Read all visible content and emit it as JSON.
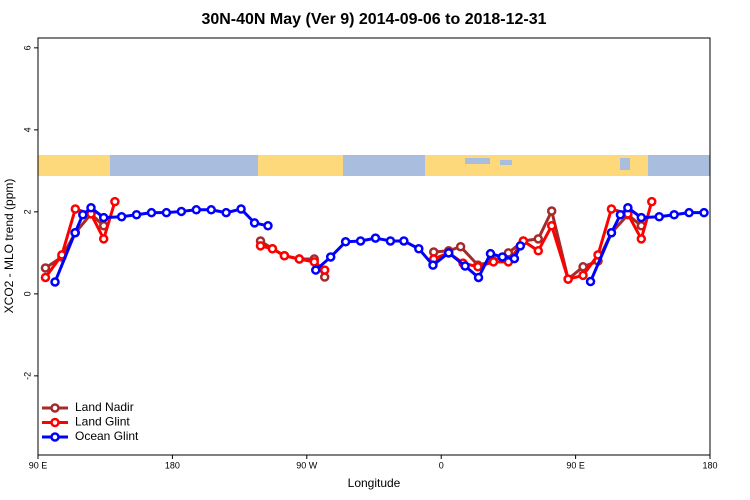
{
  "chart_data": {
    "type": "line",
    "title": "30N-40N May (Ver 9)   2014-09-06 to 2018-12-31",
    "x_label": "Longitude",
    "y_label": "XCO2 - MLO trend (ppm)",
    "xlim": [
      90,
      540
    ],
    "ylim": [
      -3.93,
      6.24
    ],
    "xticks": [
      {
        "value": 90,
        "label": "90 E"
      },
      180,
      {
        "value": 270,
        "label": "90 W"
      },
      {
        "value": 360,
        "label": "0"
      },
      {
        "value": 450,
        "label": "90 E"
      },
      {
        "value": 540,
        "label": "180"
      }
    ],
    "yticks": [
      -2,
      0,
      2,
      4,
      6
    ],
    "legend": "bottom-left",
    "series": [
      {
        "name": "Land Nadir",
        "color": "#a52a2a",
        "x": [
          95,
          106,
          115,
          125.5,
          134,
          null,
          239,
          247,
          255,
          265,
          275,
          282,
          null,
          355,
          365,
          373,
          384.6,
          395,
          405,
          415,
          425,
          434,
          445,
          455,
          465,
          474,
          485,
          494
        ],
        "values": [
          0.63,
          0.9,
          1.49,
          1.95,
          1.66,
          null,
          1.29,
          1.1,
          0.93,
          0.85,
          0.85,
          0.41,
          null,
          1.02,
          1.05,
          1.15,
          0.7,
          0.8,
          1.0,
          1.29,
          1.34,
          2.02,
          0.36,
          0.66,
          0.8,
          1.49,
          1.93,
          1.66
        ]
      },
      {
        "name": "Land Glint",
        "color": "#ff0000",
        "x": [
          95,
          106,
          115,
          125.5,
          134,
          141.5,
          null,
          239,
          247,
          255,
          265,
          275,
          282,
          null,
          355,
          365,
          374.6,
          384.6,
          395,
          405,
          415,
          425,
          434,
          445,
          455,
          465,
          474,
          485,
          494,
          501
        ],
        "values": [
          0.4,
          0.95,
          2.07,
          1.95,
          1.34,
          2.25,
          null,
          1.17,
          1.1,
          0.93,
          0.85,
          0.78,
          0.58,
          null,
          0.85,
          1.0,
          0.75,
          0.66,
          0.78,
          0.78,
          1.29,
          1.05,
          1.66,
          0.36,
          0.45,
          0.95,
          2.07,
          1.95,
          1.34,
          2.25
        ]
      },
      {
        "name": "Ocean Glint",
        "color": "#0000ff",
        "x": [
          101.4,
          114.8,
          120,
          125.5,
          134,
          146,
          156,
          166,
          176,
          186,
          196,
          206,
          216,
          226,
          235,
          244,
          null,
          276,
          286,
          296,
          306,
          316,
          326,
          335,
          345,
          354.5,
          365,
          376,
          385,
          393,
          401,
          409,
          413,
          null,
          460,
          474,
          480,
          485,
          494,
          506,
          516,
          526,
          536
        ],
        "values": [
          0.29,
          1.49,
          1.93,
          2.1,
          1.86,
          1.88,
          1.93,
          1.98,
          1.98,
          2.01,
          2.05,
          2.05,
          1.98,
          2.07,
          1.73,
          1.66,
          null,
          0.58,
          0.9,
          1.27,
          1.29,
          1.36,
          1.29,
          1.29,
          1.1,
          0.7,
          1.0,
          0.68,
          0.4,
          0.98,
          0.9,
          0.86,
          1.17,
          null,
          0.3,
          1.49,
          1.93,
          2.1,
          1.86,
          1.88,
          1.93,
          1.98,
          1.98
        ]
      }
    ]
  }
}
